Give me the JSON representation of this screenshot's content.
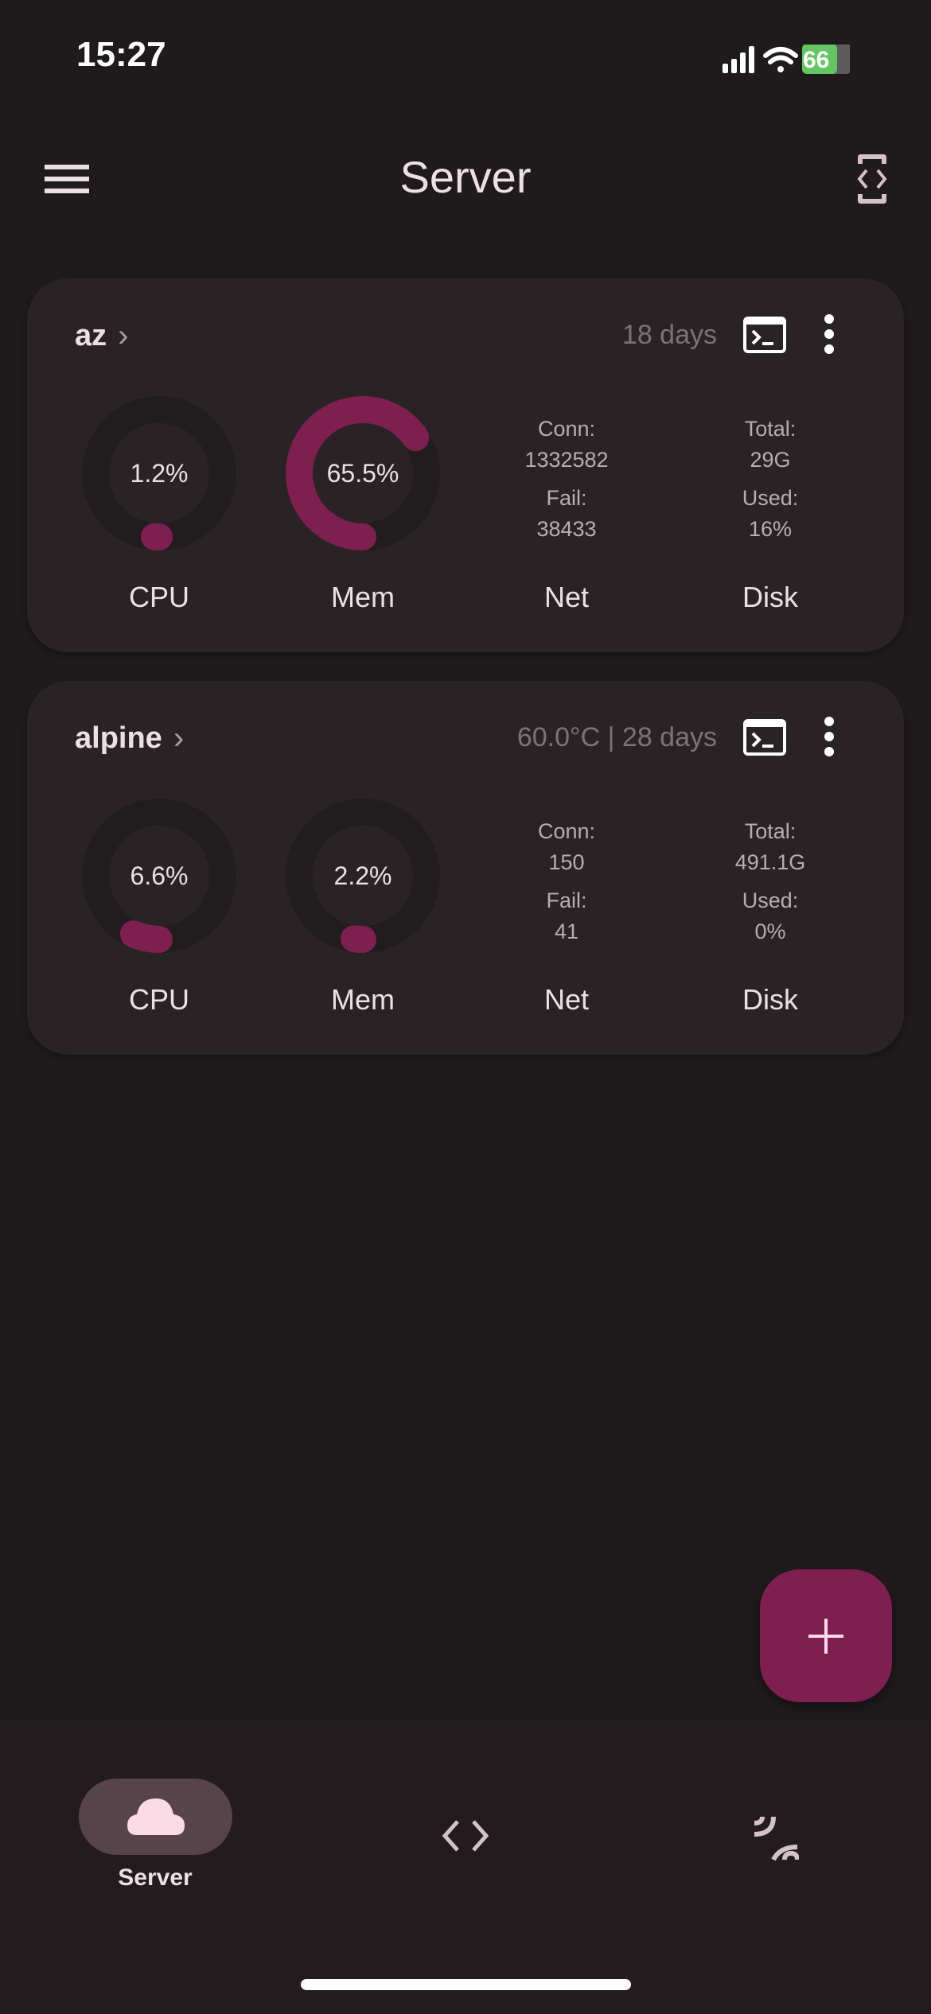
{
  "status_bar": {
    "time": "15:27",
    "battery": "66"
  },
  "app_bar": {
    "title": "Server"
  },
  "servers": [
    {
      "name": "az",
      "meta": "18 days",
      "cpu": {
        "label": "CPU",
        "value": "1.2%",
        "percent": 1.2
      },
      "mem": {
        "label": "Mem",
        "value": "65.5%",
        "percent": 65.5
      },
      "net": {
        "label": "Net",
        "conn_label": "Conn:",
        "conn": "1332582",
        "fail_label": "Fail:",
        "fail": "38433"
      },
      "disk": {
        "label": "Disk",
        "total_label": "Total:",
        "total": "29G",
        "used_label": "Used:",
        "used": "16%"
      }
    },
    {
      "name": "alpine",
      "meta": "60.0°C | 28 days",
      "cpu": {
        "label": "CPU",
        "value": "6.6%",
        "percent": 6.6
      },
      "mem": {
        "label": "Mem",
        "value": "2.2%",
        "percent": 2.2
      },
      "net": {
        "label": "Net",
        "conn_label": "Conn:",
        "conn": "150",
        "fail_label": "Fail:",
        "fail": "41"
      },
      "disk": {
        "label": "Disk",
        "total_label": "Total:",
        "total": "491.1G",
        "used_label": "Used:",
        "used": "0%"
      }
    }
  ],
  "bottom_nav": {
    "items": [
      {
        "label": "Server",
        "icon": "cloud-icon",
        "active": true
      },
      {
        "label": "",
        "icon": "code-icon"
      },
      {
        "label": "",
        "icon": "ssh-signal-icon"
      }
    ]
  },
  "colors": {
    "accent": "#7f1f4f",
    "background": "#1f1b1d",
    "card": "#2a2326",
    "track": "#211d1f"
  }
}
